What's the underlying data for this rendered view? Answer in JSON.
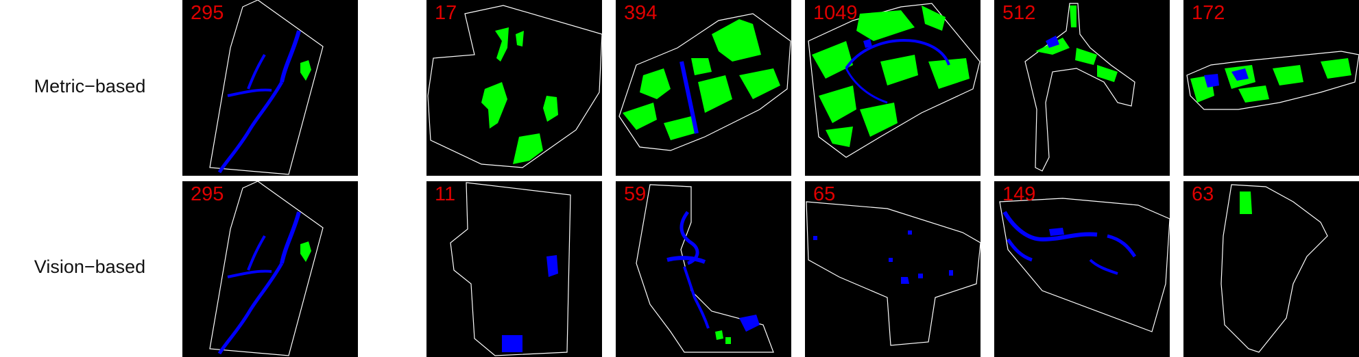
{
  "row_labels": {
    "top": "Metric−based",
    "bottom": "Vision−based"
  },
  "colors": {
    "green": "#00ff00",
    "blue": "#0000ff",
    "number": "#e00000",
    "outline": "#ffffff"
  },
  "panels": {
    "top": [
      {
        "number": "295"
      },
      {
        "number": "17"
      },
      {
        "number": "394"
      },
      {
        "number": "1049"
      },
      {
        "number": "512"
      },
      {
        "number": "172"
      }
    ],
    "bottom": [
      {
        "number": "295"
      },
      {
        "number": "11"
      },
      {
        "number": "59"
      },
      {
        "number": "65"
      },
      {
        "number": "149"
      },
      {
        "number": "63"
      }
    ]
  }
}
